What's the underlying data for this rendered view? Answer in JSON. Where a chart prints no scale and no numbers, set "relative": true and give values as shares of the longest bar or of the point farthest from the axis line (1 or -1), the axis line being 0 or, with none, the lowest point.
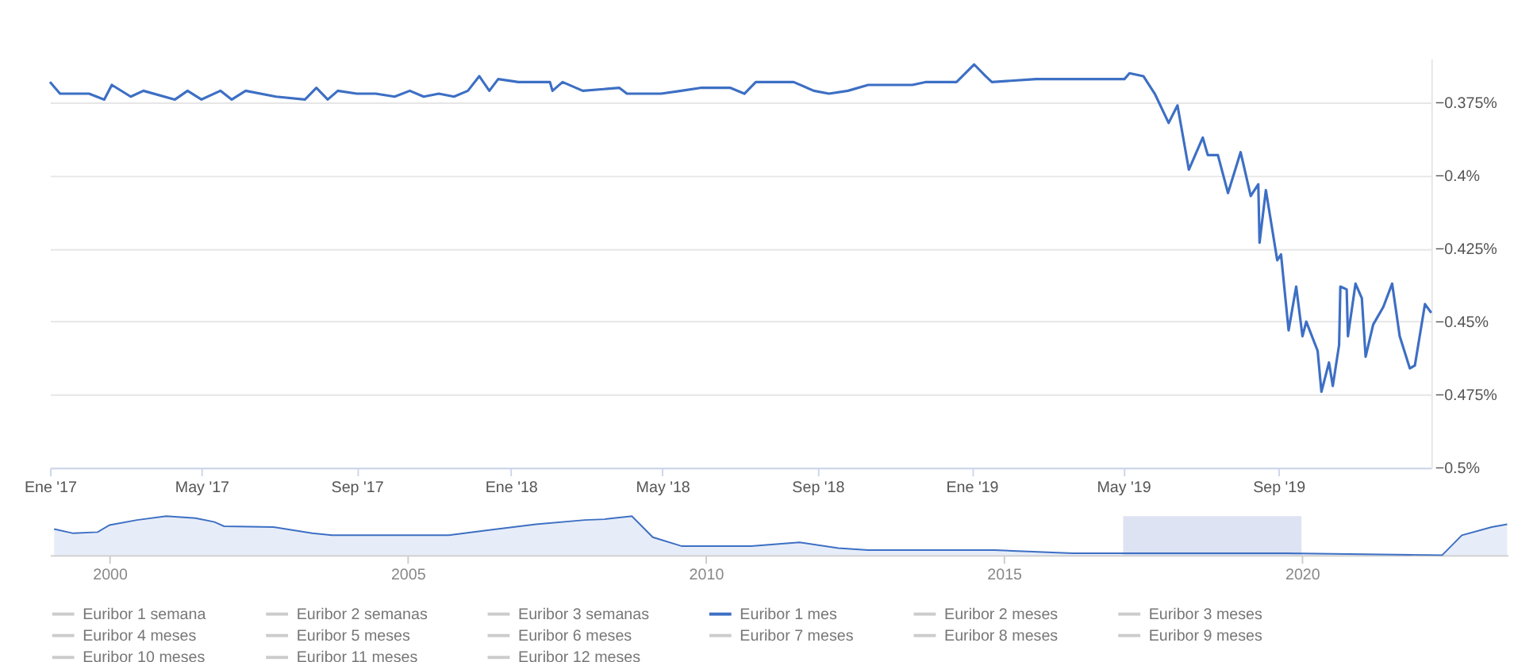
{
  "chart_data": [
    {
      "type": "line",
      "x": [
        "2017-01-01",
        "2017-01-09",
        "2017-02-01",
        "2017-02-13",
        "2017-02-19",
        "2017-03-06",
        "2017-03-16",
        "2017-04-10",
        "2017-04-20",
        "2017-05-01",
        "2017-05-16",
        "2017-05-25",
        "2017-06-05",
        "2017-06-29",
        "2017-07-22",
        "2017-07-31",
        "2017-08-09",
        "2017-08-17",
        "2017-09-01",
        "2017-09-16",
        "2017-10-01",
        "2017-10-13",
        "2017-10-24",
        "2017-11-05",
        "2017-11-17",
        "2017-11-28",
        "2017-12-07",
        "2017-12-15",
        "2017-12-22",
        "2018-01-07",
        "2018-02-01",
        "2018-02-03",
        "2018-02-11",
        "2018-02-27",
        "2018-03-28",
        "2018-04-03",
        "2018-04-30",
        "2018-05-16",
        "2018-05-31",
        "2018-06-12",
        "2018-06-24",
        "2018-07-05",
        "2018-07-14",
        "2018-08-13",
        "2018-08-29",
        "2018-09-10",
        "2018-09-25",
        "2018-10-11",
        "2018-11-15",
        "2018-11-26",
        "2018-12-20",
        "2019-01-03",
        "2019-01-12",
        "2019-01-17",
        "2019-02-21",
        "2019-03-12",
        "2019-04-12",
        "2019-05-02",
        "2019-05-06",
        "2019-05-17",
        "2019-05-26",
        "2019-06-06",
        "2019-06-13",
        "2019-06-22",
        "2019-07-03",
        "2019-07-07",
        "2019-07-15",
        "2019-07-23",
        "2019-08-02",
        "2019-08-10",
        "2019-08-16",
        "2019-08-17",
        "2019-08-22",
        "2019-08-31",
        "2019-09-03",
        "2019-09-09",
        "2019-09-15",
        "2019-09-20",
        "2019-09-23",
        "2019-10-02",
        "2019-10-05",
        "2019-10-11",
        "2019-10-14",
        "2019-10-19",
        "2019-10-20",
        "2019-10-25",
        "2019-10-26",
        "2019-11-01",
        "2019-11-06",
        "2019-11-09",
        "2019-11-15",
        "2019-11-23",
        "2019-11-30",
        "2019-12-06",
        "2019-12-14",
        "2019-12-18",
        "2019-12-26",
        "2019-12-31"
      ],
      "series": [
        {
          "name": "Euribor 1 semana",
          "color": "#cccccc",
          "values": [
            null,
            null,
            null,
            null,
            null,
            null,
            null,
            null,
            null,
            null,
            null,
            null,
            null,
            null,
            null,
            null,
            null,
            null,
            null,
            null,
            null,
            null,
            null,
            null,
            null,
            null,
            null,
            null,
            null,
            null,
            null,
            null,
            null,
            null,
            null,
            null,
            null,
            null,
            null,
            null,
            null,
            null,
            null,
            null,
            null,
            null,
            null,
            null,
            null,
            null,
            null,
            null,
            null,
            null,
            null,
            null,
            null,
            null,
            null,
            null,
            null,
            null,
            null,
            null,
            null,
            null,
            null,
            null,
            null,
            null,
            null,
            null,
            null,
            null,
            null,
            null,
            null,
            null,
            null,
            null,
            null,
            null,
            null,
            null,
            null,
            null,
            null,
            null,
            null,
            null,
            null,
            null,
            null,
            null,
            null,
            null,
            null,
            null
          ]
        },
        {
          "name": "Euribor 2 semanas",
          "color": "#cccccc",
          "values": [
            null,
            null,
            null,
            null,
            null,
            null,
            null,
            null,
            null,
            null,
            null,
            null,
            null,
            null,
            null,
            null,
            null,
            null,
            null,
            null,
            null,
            null,
            null,
            null,
            null,
            null,
            null,
            null,
            null,
            null,
            null,
            null,
            null,
            null,
            null,
            null,
            null,
            null,
            null,
            null,
            null,
            null,
            null,
            null,
            null,
            null,
            null,
            null,
            null,
            null,
            null,
            null,
            null,
            null,
            null,
            null,
            null,
            null,
            null,
            null,
            null,
            null,
            null,
            null,
            null,
            null,
            null,
            null,
            null,
            null,
            null,
            null,
            null,
            null,
            null,
            null,
            null,
            null,
            null,
            null,
            null,
            null,
            null,
            null,
            null,
            null,
            null,
            null,
            null,
            null,
            null,
            null,
            null,
            null,
            null,
            null,
            null,
            null
          ]
        },
        {
          "name": "Euribor 3 semanas",
          "color": "#cccccc",
          "values": [
            null,
            null,
            null,
            null,
            null,
            null,
            null,
            null,
            null,
            null,
            null,
            null,
            null,
            null,
            null,
            null,
            null,
            null,
            null,
            null,
            null,
            null,
            null,
            null,
            null,
            null,
            null,
            null,
            null,
            null,
            null,
            null,
            null,
            null,
            null,
            null,
            null,
            null,
            null,
            null,
            null,
            null,
            null,
            null,
            null,
            null,
            null,
            null,
            null,
            null,
            null,
            null,
            null,
            null,
            null,
            null,
            null,
            null,
            null,
            null,
            null,
            null,
            null,
            null,
            null,
            null,
            null,
            null,
            null,
            null,
            null,
            null,
            null,
            null,
            null,
            null,
            null,
            null,
            null,
            null,
            null,
            null,
            null,
            null,
            null,
            null,
            null,
            null,
            null,
            null,
            null,
            null,
            null,
            null,
            null,
            null,
            null,
            null
          ]
        },
        {
          "name": "Euribor 1 mes",
          "color": "#3d6fc4",
          "values": [
            -0.368,
            -0.372,
            -0.372,
            -0.374,
            -0.369,
            -0.373,
            -0.371,
            -0.374,
            -0.371,
            -0.374,
            -0.371,
            -0.374,
            -0.371,
            -0.373,
            -0.374,
            -0.37,
            -0.374,
            -0.371,
            -0.372,
            -0.372,
            -0.373,
            -0.371,
            -0.373,
            -0.372,
            -0.373,
            -0.371,
            -0.366,
            -0.371,
            -0.367,
            -0.368,
            -0.368,
            -0.371,
            -0.368,
            -0.371,
            -0.37,
            -0.372,
            -0.372,
            -0.371,
            -0.37,
            -0.37,
            -0.37,
            -0.372,
            -0.368,
            -0.368,
            -0.371,
            -0.372,
            -0.371,
            -0.369,
            -0.369,
            -0.368,
            -0.368,
            -0.362,
            -0.366,
            -0.368,
            -0.367,
            -0.367,
            -0.367,
            -0.367,
            -0.365,
            -0.366,
            -0.372,
            -0.382,
            -0.376,
            -0.398,
            -0.387,
            -0.393,
            -0.393,
            -0.406,
            -0.392,
            -0.407,
            -0.403,
            -0.423,
            -0.405,
            -0.429,
            -0.427,
            -0.453,
            -0.438,
            -0.455,
            -0.45,
            -0.46,
            -0.474,
            -0.464,
            -0.472,
            -0.458,
            -0.438,
            -0.439,
            -0.455,
            -0.437,
            -0.442,
            -0.462,
            -0.451,
            -0.445,
            -0.437,
            -0.455,
            -0.466,
            -0.465,
            -0.444,
            -0.447
          ]
        },
        {
          "name": "Euribor 2 meses",
          "color": "#cccccc",
          "values": [
            null,
            null,
            null,
            null,
            null,
            null,
            null,
            null,
            null,
            null,
            null,
            null,
            null,
            null,
            null,
            null,
            null,
            null,
            null,
            null,
            null,
            null,
            null,
            null,
            null,
            null,
            null,
            null,
            null,
            null,
            null,
            null,
            null,
            null,
            null,
            null,
            null,
            null,
            null,
            null,
            null,
            null,
            null,
            null,
            null,
            null,
            null,
            null,
            null,
            null,
            null,
            null,
            null,
            null,
            null,
            null,
            null,
            null,
            null,
            null,
            null,
            null,
            null,
            null,
            null,
            null,
            null,
            null,
            null,
            null,
            null,
            null,
            null,
            null,
            null,
            null,
            null,
            null,
            null,
            null,
            null,
            null,
            null,
            null,
            null,
            null,
            null,
            null,
            null,
            null,
            null,
            null,
            null,
            null,
            null,
            null,
            null,
            null
          ]
        },
        {
          "name": "Euribor 3 meses",
          "color": "#cccccc",
          "values": [
            null,
            null,
            null,
            null,
            null,
            null,
            null,
            null,
            null,
            null,
            null,
            null,
            null,
            null,
            null,
            null,
            null,
            null,
            null,
            null,
            null,
            null,
            null,
            null,
            null,
            null,
            null,
            null,
            null,
            null,
            null,
            null,
            null,
            null,
            null,
            null,
            null,
            null,
            null,
            null,
            null,
            null,
            null,
            null,
            null,
            null,
            null,
            null,
            null,
            null,
            null,
            null,
            null,
            null,
            null,
            null,
            null,
            null,
            null,
            null,
            null,
            null,
            null,
            null,
            null,
            null,
            null,
            null,
            null,
            null,
            null,
            null,
            null,
            null,
            null,
            null,
            null,
            null,
            null,
            null,
            null,
            null,
            null,
            null,
            null,
            null,
            null,
            null,
            null,
            null,
            null,
            null,
            null,
            null,
            null,
            null,
            null,
            null
          ]
        },
        {
          "name": "Euribor 4 meses",
          "color": "#cccccc",
          "values": [
            null,
            null,
            null,
            null,
            null,
            null,
            null,
            null,
            null,
            null,
            null,
            null,
            null,
            null,
            null,
            null,
            null,
            null,
            null,
            null,
            null,
            null,
            null,
            null,
            null,
            null,
            null,
            null,
            null,
            null,
            null,
            null,
            null,
            null,
            null,
            null,
            null,
            null,
            null,
            null,
            null,
            null,
            null,
            null,
            null,
            null,
            null,
            null,
            null,
            null,
            null,
            null,
            null,
            null,
            null,
            null,
            null,
            null,
            null,
            null,
            null,
            null,
            null,
            null,
            null,
            null,
            null,
            null,
            null,
            null,
            null,
            null,
            null,
            null,
            null,
            null,
            null,
            null,
            null,
            null,
            null,
            null,
            null,
            null,
            null,
            null,
            null,
            null,
            null,
            null,
            null,
            null,
            null,
            null,
            null,
            null,
            null,
            null
          ]
        },
        {
          "name": "Euribor 5 meses",
          "color": "#cccccc",
          "values": [
            null,
            null,
            null,
            null,
            null,
            null,
            null,
            null,
            null,
            null,
            null,
            null,
            null,
            null,
            null,
            null,
            null,
            null,
            null,
            null,
            null,
            null,
            null,
            null,
            null,
            null,
            null,
            null,
            null,
            null,
            null,
            null,
            null,
            null,
            null,
            null,
            null,
            null,
            null,
            null,
            null,
            null,
            null,
            null,
            null,
            null,
            null,
            null,
            null,
            null,
            null,
            null,
            null,
            null,
            null,
            null,
            null,
            null,
            null,
            null,
            null,
            null,
            null,
            null,
            null,
            null,
            null,
            null,
            null,
            null,
            null,
            null,
            null,
            null,
            null,
            null,
            null,
            null,
            null,
            null,
            null,
            null,
            null,
            null,
            null,
            null,
            null,
            null,
            null,
            null,
            null,
            null,
            null,
            null,
            null,
            null,
            null,
            null
          ]
        },
        {
          "name": "Euribor 6 meses",
          "color": "#cccccc",
          "values": [
            null,
            null,
            null,
            null,
            null,
            null,
            null,
            null,
            null,
            null,
            null,
            null,
            null,
            null,
            null,
            null,
            null,
            null,
            null,
            null,
            null,
            null,
            null,
            null,
            null,
            null,
            null,
            null,
            null,
            null,
            null,
            null,
            null,
            null,
            null,
            null,
            null,
            null,
            null,
            null,
            null,
            null,
            null,
            null,
            null,
            null,
            null,
            null,
            null,
            null,
            null,
            null,
            null,
            null,
            null,
            null,
            null,
            null,
            null,
            null,
            null,
            null,
            null,
            null,
            null,
            null,
            null,
            null,
            null,
            null,
            null,
            null,
            null,
            null,
            null,
            null,
            null,
            null,
            null,
            null,
            null,
            null,
            null,
            null,
            null,
            null,
            null,
            null,
            null,
            null,
            null,
            null,
            null,
            null,
            null,
            null,
            null,
            null
          ]
        },
        {
          "name": "Euribor 7 meses",
          "color": "#cccccc",
          "values": [
            null,
            null,
            null,
            null,
            null,
            null,
            null,
            null,
            null,
            null,
            null,
            null,
            null,
            null,
            null,
            null,
            null,
            null,
            null,
            null,
            null,
            null,
            null,
            null,
            null,
            null,
            null,
            null,
            null,
            null,
            null,
            null,
            null,
            null,
            null,
            null,
            null,
            null,
            null,
            null,
            null,
            null,
            null,
            null,
            null,
            null,
            null,
            null,
            null,
            null,
            null,
            null,
            null,
            null,
            null,
            null,
            null,
            null,
            null,
            null,
            null,
            null,
            null,
            null,
            null,
            null,
            null,
            null,
            null,
            null,
            null,
            null,
            null,
            null,
            null,
            null,
            null,
            null,
            null,
            null,
            null,
            null,
            null,
            null,
            null,
            null,
            null,
            null,
            null,
            null,
            null,
            null,
            null,
            null,
            null,
            null,
            null,
            null
          ]
        },
        {
          "name": "Euribor 8 meses",
          "color": "#cccccc",
          "values": [
            null,
            null,
            null,
            null,
            null,
            null,
            null,
            null,
            null,
            null,
            null,
            null,
            null,
            null,
            null,
            null,
            null,
            null,
            null,
            null,
            null,
            null,
            null,
            null,
            null,
            null,
            null,
            null,
            null,
            null,
            null,
            null,
            null,
            null,
            null,
            null,
            null,
            null,
            null,
            null,
            null,
            null,
            null,
            null,
            null,
            null,
            null,
            null,
            null,
            null,
            null,
            null,
            null,
            null,
            null,
            null,
            null,
            null,
            null,
            null,
            null,
            null,
            null,
            null,
            null,
            null,
            null,
            null,
            null,
            null,
            null,
            null,
            null,
            null,
            null,
            null,
            null,
            null,
            null,
            null,
            null,
            null,
            null,
            null,
            null,
            null,
            null,
            null,
            null,
            null,
            null,
            null,
            null,
            null,
            null,
            null,
            null,
            null
          ]
        },
        {
          "name": "Euribor 9 meses",
          "color": "#cccccc",
          "values": [
            null,
            null,
            null,
            null,
            null,
            null,
            null,
            null,
            null,
            null,
            null,
            null,
            null,
            null,
            null,
            null,
            null,
            null,
            null,
            null,
            null,
            null,
            null,
            null,
            null,
            null,
            null,
            null,
            null,
            null,
            null,
            null,
            null,
            null,
            null,
            null,
            null,
            null,
            null,
            null,
            null,
            null,
            null,
            null,
            null,
            null,
            null,
            null,
            null,
            null,
            null,
            null,
            null,
            null,
            null,
            null,
            null,
            null,
            null,
            null,
            null,
            null,
            null,
            null,
            null,
            null,
            null,
            null,
            null,
            null,
            null,
            null,
            null,
            null,
            null,
            null,
            null,
            null,
            null,
            null,
            null,
            null,
            null,
            null,
            null,
            null,
            null,
            null,
            null,
            null,
            null,
            null,
            null,
            null,
            null,
            null,
            null,
            null
          ]
        },
        {
          "name": "Euribor 10 meses",
          "color": "#cccccc",
          "values": [
            null,
            null,
            null,
            null,
            null,
            null,
            null,
            null,
            null,
            null,
            null,
            null,
            null,
            null,
            null,
            null,
            null,
            null,
            null,
            null,
            null,
            null,
            null,
            null,
            null,
            null,
            null,
            null,
            null,
            null,
            null,
            null,
            null,
            null,
            null,
            null,
            null,
            null,
            null,
            null,
            null,
            null,
            null,
            null,
            null,
            null,
            null,
            null,
            null,
            null,
            null,
            null,
            null,
            null,
            null,
            null,
            null,
            null,
            null,
            null,
            null,
            null,
            null,
            null,
            null,
            null,
            null,
            null,
            null,
            null,
            null,
            null,
            null,
            null,
            null,
            null,
            null,
            null,
            null,
            null,
            null,
            null,
            null,
            null,
            null,
            null,
            null,
            null,
            null,
            null,
            null,
            null,
            null,
            null,
            null,
            null,
            null,
            null
          ]
        },
        {
          "name": "Euribor 11 meses",
          "color": "#cccccc",
          "values": [
            null,
            null,
            null,
            null,
            null,
            null,
            null,
            null,
            null,
            null,
            null,
            null,
            null,
            null,
            null,
            null,
            null,
            null,
            null,
            null,
            null,
            null,
            null,
            null,
            null,
            null,
            null,
            null,
            null,
            null,
            null,
            null,
            null,
            null,
            null,
            null,
            null,
            null,
            null,
            null,
            null,
            null,
            null,
            null,
            null,
            null,
            null,
            null,
            null,
            null,
            null,
            null,
            null,
            null,
            null,
            null,
            null,
            null,
            null,
            null,
            null,
            null,
            null,
            null,
            null,
            null,
            null,
            null,
            null,
            null,
            null,
            null,
            null,
            null,
            null,
            null,
            null,
            null,
            null,
            null,
            null,
            null,
            null,
            null,
            null,
            null,
            null,
            null,
            null,
            null,
            null,
            null,
            null,
            null,
            null,
            null,
            null,
            null
          ]
        },
        {
          "name": "Euribor 12 meses",
          "color": "#cccccc",
          "values": [
            null,
            null,
            null,
            null,
            null,
            null,
            null,
            null,
            null,
            null,
            null,
            null,
            null,
            null,
            null,
            null,
            null,
            null,
            null,
            null,
            null,
            null,
            null,
            null,
            null,
            null,
            null,
            null,
            null,
            null,
            null,
            null,
            null,
            null,
            null,
            null,
            null,
            null,
            null,
            null,
            null,
            null,
            null,
            null,
            null,
            null,
            null,
            null,
            null,
            null,
            null,
            null,
            null,
            null,
            null,
            null,
            null,
            null,
            null,
            null,
            null,
            null,
            null,
            null,
            null,
            null,
            null,
            null,
            null,
            null,
            null,
            null,
            null,
            null,
            null,
            null,
            null,
            null,
            null,
            null,
            null,
            null,
            null,
            null,
            null,
            null,
            null,
            null,
            null,
            null,
            null,
            null,
            null,
            null,
            null,
            null,
            null,
            null
          ]
        }
      ],
      "xlim": [
        "2017-01-01",
        "2019-12-31"
      ],
      "xticks": [
        {
          "value": "2017-01-01",
          "label": "Ene '17"
        },
        {
          "value": "2017-05-01",
          "label": "May '17"
        },
        {
          "value": "2017-09-01",
          "label": "Sep '17"
        },
        {
          "value": "2018-01-01",
          "label": "Ene '18"
        },
        {
          "value": "2018-05-01",
          "label": "May '18"
        },
        {
          "value": "2018-09-01",
          "label": "Sep '18"
        },
        {
          "value": "2019-01-01",
          "label": "Ene '19"
        },
        {
          "value": "2019-05-01",
          "label": "May '19"
        },
        {
          "value": "2019-09-01",
          "label": "Sep '19"
        }
      ],
      "ylim": [
        -0.5,
        -0.36
      ],
      "yticks": [
        {
          "value": -0.5,
          "label": "−0.5%"
        },
        {
          "value": -0.475,
          "label": "−0.475%"
        },
        {
          "value": -0.45,
          "label": "−0.45%"
        },
        {
          "value": -0.425,
          "label": "−0.425%"
        },
        {
          "value": -0.4,
          "label": "−0.4%"
        },
        {
          "value": -0.375,
          "label": "−0.375%"
        }
      ],
      "grid": "y",
      "legend": "bottom",
      "marker": "none",
      "line_style": "solid"
    },
    {
      "type": "area",
      "relative": true,
      "x": [
        1999.07,
        1999.39,
        1999.8,
        2000.0,
        2000.46,
        2000.95,
        2001.44,
        2001.76,
        2001.92,
        2002.75,
        2003.4,
        2003.73,
        2005.69,
        2006.34,
        2007.15,
        2007.97,
        2008.3,
        2008.76,
        2009.11,
        2009.6,
        2010.76,
        2011.57,
        2012.22,
        2012.72,
        2014.84,
        2016.15,
        2019.74,
        2022.35,
        2022.68,
        2023.18,
        2023.44
      ],
      "series": [
        {
          "color": "#3d6fc4",
          "values": [
            0.67,
            0.56,
            0.59,
            0.77,
            0.9,
            1.0,
            0.95,
            0.85,
            0.74,
            0.72,
            0.56,
            0.51,
            0.51,
            0.64,
            0.79,
            0.9,
            0.92,
            1.0,
            0.46,
            0.23,
            0.23,
            0.33,
            0.18,
            0.13,
            0.13,
            0.05,
            0.05,
            0.0,
            0.51,
            0.72,
            0.79
          ]
        }
      ],
      "xlim": [
        1999.0,
        2023.45
      ],
      "xticks": [
        {
          "value": 2000,
          "label": "2000"
        },
        {
          "value": 2005,
          "label": "2005"
        },
        {
          "value": 2010,
          "label": "2010"
        },
        {
          "value": 2015,
          "label": "2015"
        },
        {
          "value": 2020,
          "label": "2020"
        }
      ],
      "bands": [
        {
          "axis": "x",
          "from": 2017.0,
          "to": 2019.99,
          "color": "#d5dcef"
        }
      ],
      "grid": false,
      "legend": false
    }
  ]
}
